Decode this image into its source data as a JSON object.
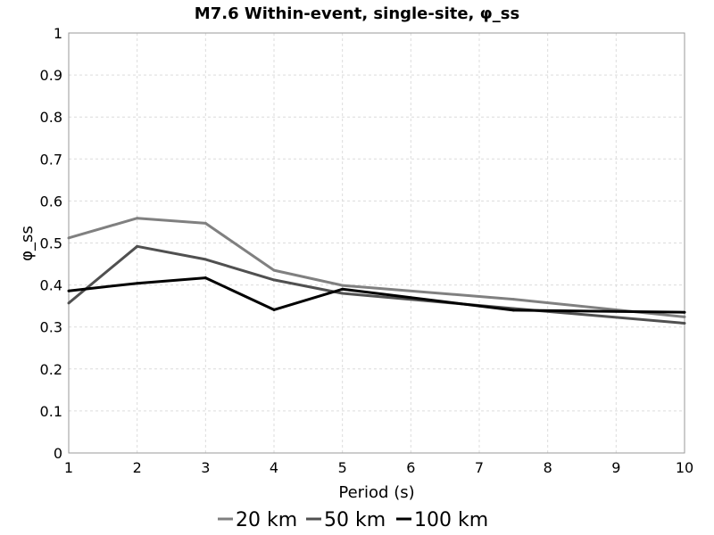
{
  "chart_data": {
    "type": "line",
    "title": "M7.6 Within-event, single-site, φ_ss",
    "xlabel": "Period (s)",
    "ylabel": "φ_ss",
    "xlim": [
      1,
      10
    ],
    "ylim": [
      0,
      1
    ],
    "xticks": [
      1,
      2,
      3,
      4,
      5,
      6,
      7,
      8,
      9,
      10
    ],
    "yticks": [
      0,
      0.1,
      0.2,
      0.3,
      0.4,
      0.5,
      0.6,
      0.7,
      0.8,
      0.9,
      1
    ],
    "xtick_labels": [
      "1",
      "2",
      "3",
      "4",
      "5",
      "6",
      "7",
      "8",
      "9",
      "10"
    ],
    "ytick_labels": [
      "0",
      "0.1",
      "0.2",
      "0.3",
      "0.4",
      "0.5",
      "0.6",
      "0.7",
      "0.8",
      "0.9",
      "1"
    ],
    "grid": true,
    "legend_position": "bottom",
    "series": [
      {
        "name": "20 km",
        "color": "#808080",
        "x": [
          1,
          2,
          3,
          4,
          5,
          7.5,
          10
        ],
        "y": [
          0.512,
          0.559,
          0.547,
          0.435,
          0.399,
          0.366,
          0.324
        ]
      },
      {
        "name": "50 km",
        "color": "#505050",
        "x": [
          1,
          2,
          3,
          4,
          5,
          7.5,
          10
        ],
        "y": [
          0.357,
          0.492,
          0.461,
          0.412,
          0.38,
          0.344,
          0.309
        ]
      },
      {
        "name": "100 km",
        "color": "#000000",
        "x": [
          1,
          2,
          3,
          4,
          5,
          7.5,
          10
        ],
        "y": [
          0.386,
          0.404,
          0.417,
          0.341,
          0.39,
          0.34,
          0.335
        ]
      }
    ]
  }
}
